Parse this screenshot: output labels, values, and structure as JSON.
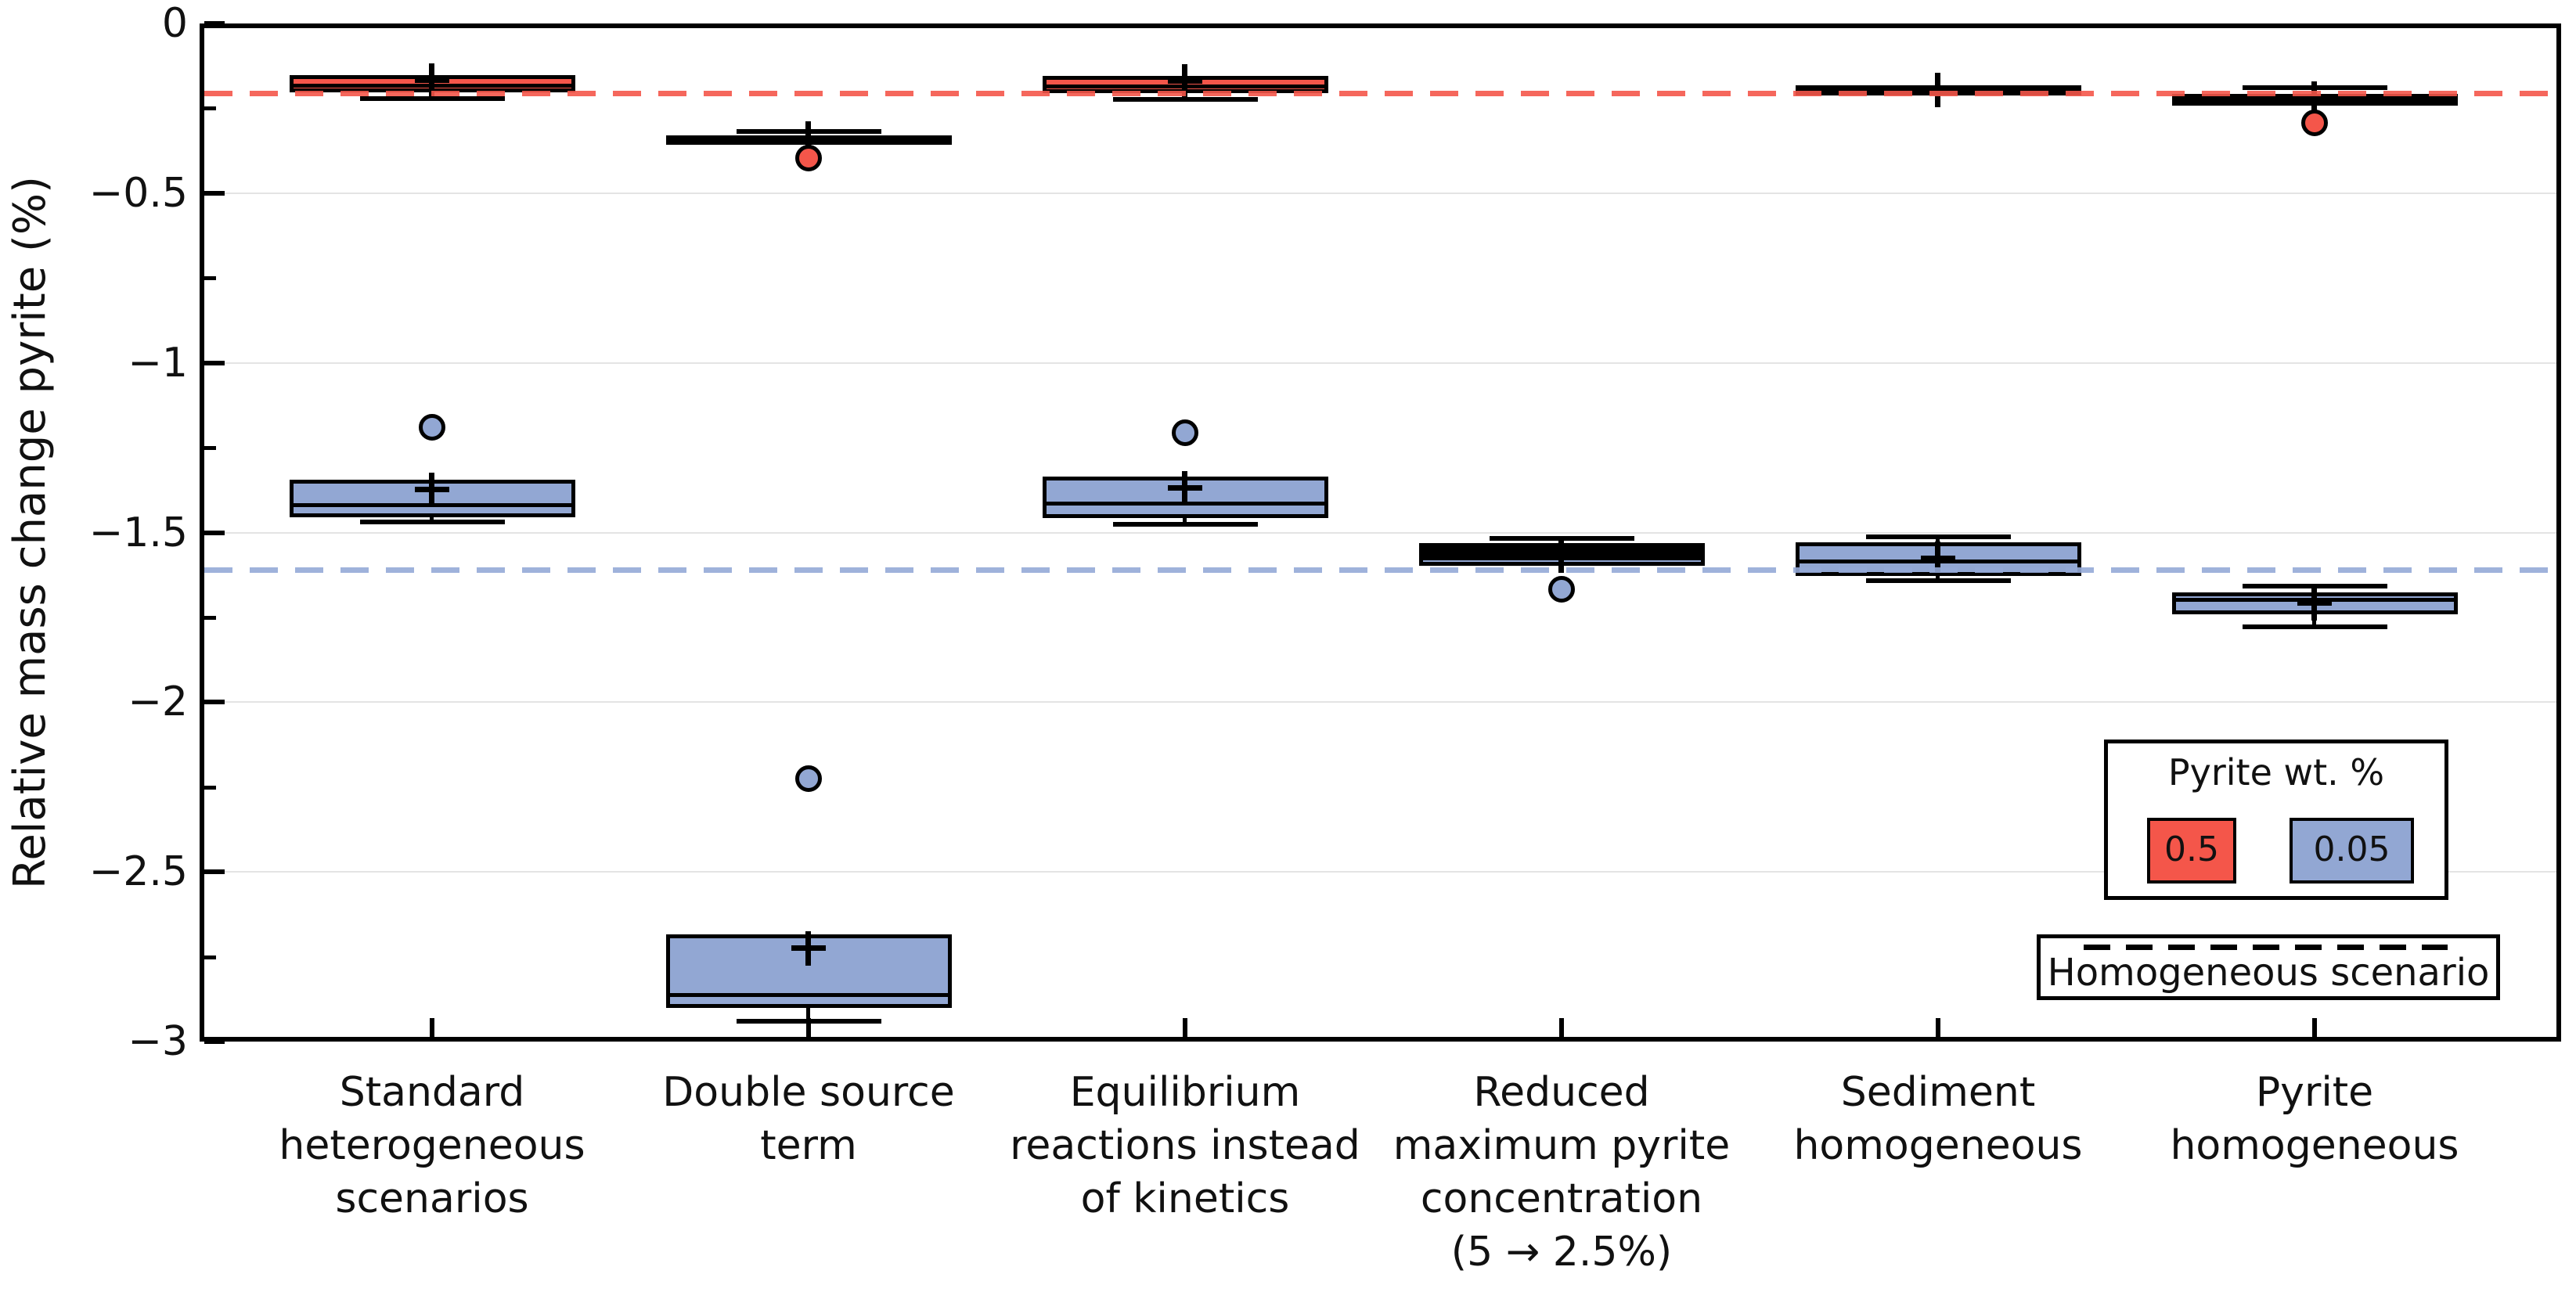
{
  "chart_data": {
    "type": "boxplot",
    "title": "",
    "xlabel": "",
    "ylabel": "Relative mass change pyrite (%)",
    "ylim": [
      -3,
      0
    ],
    "yticks_major": [
      0,
      -0.5,
      -1,
      -1.5,
      -2,
      -2.5,
      -3
    ],
    "ytick_labels": [
      "0",
      "−0.5",
      "−1",
      "−1.5",
      "−2",
      "−2.5",
      "−3"
    ],
    "yticks_minor": [
      -0.25,
      -0.75,
      -1.25,
      -1.75,
      -2.25,
      -2.75
    ],
    "grid": "horizontal major gridlines, light gray",
    "legend_position": "lower right",
    "reference_lines": [
      {
        "name": "homogeneous-scenario-0.5-wt",
        "value": -0.205,
        "color": "#f4564a",
        "style": "dashed"
      },
      {
        "name": "homogeneous-scenario-0.05-wt",
        "value": -1.61,
        "color": "#94a9d7",
        "style": "dashed"
      }
    ],
    "series": [
      {
        "key": "wt05",
        "name": "0.5",
        "color": "#f4564a"
      },
      {
        "key": "wt005",
        "name": "0.05",
        "color": "#92a7d3"
      }
    ],
    "groups": [
      {
        "label_lines": [
          "Standard",
          "heterogeneous",
          "scenarios"
        ],
        "wt05": {
          "whislo": -0.222,
          "q1": -0.203,
          "med": -0.185,
          "q3": -0.153,
          "whishi": null,
          "mean": -0.168,
          "fliers": []
        },
        "wt005": {
          "whislo": -1.47,
          "q1": -1.455,
          "med": -1.42,
          "q3": -1.345,
          "whishi": null,
          "mean": -1.375,
          "fliers": [
            -1.19
          ]
        }
      },
      {
        "label_lines": [
          "Double source",
          "term"
        ],
        "wt05": {
          "whislo": null,
          "q1": -0.358,
          "med": -0.346,
          "q3": -0.33,
          "whishi": -0.318,
          "mean": -0.34,
          "fliers": [
            -0.397
          ]
        },
        "wt005": {
          "whislo": -2.94,
          "q1": -2.9,
          "med": -2.865,
          "q3": -2.685,
          "whishi": null,
          "mean": -2.725,
          "fliers": [
            -2.225
          ]
        }
      },
      {
        "label_lines": [
          "Equilibrium",
          "reactions instead",
          "of kinetics"
        ],
        "wt05": {
          "whislo": -0.224,
          "q1": -0.206,
          "med": -0.186,
          "q3": -0.155,
          "whishi": null,
          "mean": -0.171,
          "fliers": []
        },
        "wt005": {
          "whislo": -1.475,
          "q1": -1.458,
          "med": -1.415,
          "q3": -1.335,
          "whishi": null,
          "mean": -1.37,
          "fliers": [
            -1.205
          ]
        }
      },
      {
        "label_lines": [
          "Reduced",
          "maximum pyrite",
          "concentration",
          "(5 → 2.5%)"
        ],
        "wt05": {
          "whislo": null,
          "q1": -1.558,
          "med": -1.544,
          "q3": -1.53,
          "whishi": -1.517,
          "mean": null,
          "fliers": []
        },
        "wt005": {
          "whislo": null,
          "q1": -1.598,
          "med": -1.578,
          "q3": -1.558,
          "whishi": null,
          "mean": -1.567,
          "fliers": [
            -1.667
          ]
        }
      },
      {
        "label_lines": [
          "Sediment",
          "homogeneous"
        ],
        "wt05": {
          "whislo": null,
          "q1": -0.212,
          "med": -0.197,
          "q3": -0.182,
          "whishi": null,
          "mean": -0.196,
          "fliers": []
        },
        "wt005": {
          "whislo": -1.642,
          "q1": -1.627,
          "med": -1.586,
          "q3": -1.528,
          "whishi": -1.512,
          "mean": -1.578,
          "fliers": []
        }
      },
      {
        "label_lines": [
          "Pyrite",
          "homogeneous"
        ],
        "wt05": {
          "whislo": null,
          "q1": -0.242,
          "med": -0.226,
          "q3": -0.208,
          "whishi": -0.189,
          "mean": -0.221,
          "fliers": [
            -0.293
          ]
        },
        "wt005": {
          "whislo": -1.777,
          "q1": -1.74,
          "med": -1.7,
          "q3": -1.676,
          "whishi": -1.658,
          "mean": -1.708,
          "fliers": []
        }
      }
    ]
  },
  "legend_pyrite": {
    "title": "Pyrite wt. %",
    "items": [
      {
        "label": "0.5",
        "color": "#f4564a"
      },
      {
        "label": "0.05",
        "color": "#92a7d3"
      }
    ]
  },
  "legend_homogeneous": {
    "label": "Homogeneous scenario"
  }
}
